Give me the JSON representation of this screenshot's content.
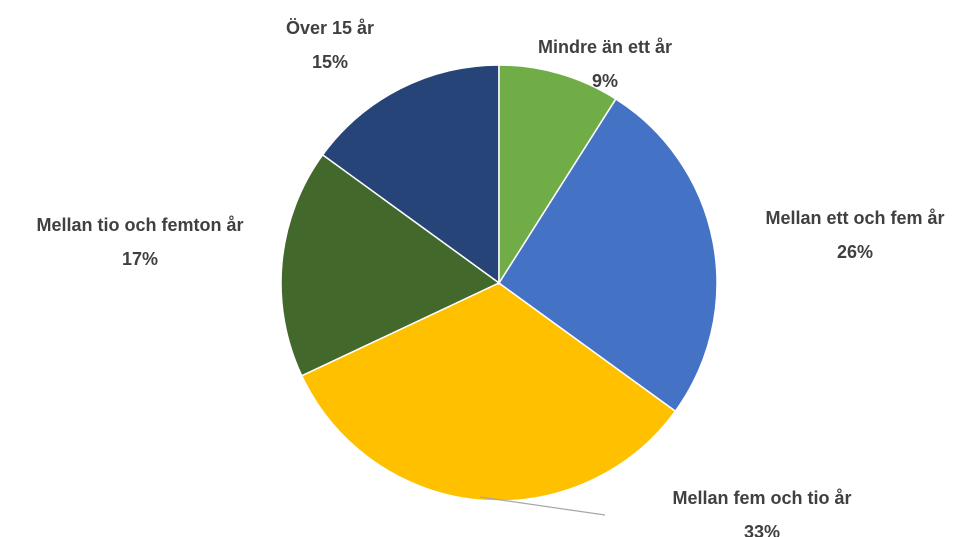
{
  "chart_data": {
    "type": "pie",
    "categories": [
      "Mindre än ett år",
      "Mellan ett och fem år",
      "Mellan fem och tio år",
      "Mellan tio och femton år",
      "Över 15 år"
    ],
    "values": [
      9,
      26,
      33,
      17,
      15
    ],
    "value_labels": [
      "9%",
      "26%",
      "33%",
      "17%",
      "15%"
    ],
    "colors": [
      "#70ad47",
      "#4472c4",
      "#ffc000",
      "#43682b",
      "#264478"
    ]
  }
}
